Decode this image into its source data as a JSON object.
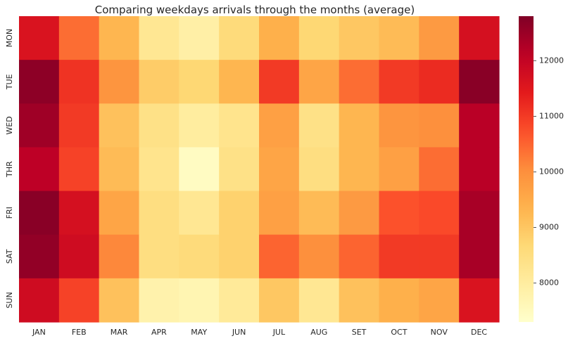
{
  "chart_data": {
    "type": "heatmap",
    "title": "Comparing weekdays arrivals through the months (average)",
    "xlabel": "",
    "ylabel": "",
    "x_categories": [
      "JAN",
      "FEB",
      "MAR",
      "APR",
      "MAY",
      "JUN",
      "JUL",
      "AUG",
      "SET",
      "OCT",
      "NOV",
      "DEC"
    ],
    "y_categories": [
      "MON",
      "TUE",
      "WED",
      "THR",
      "FRI",
      "SAT",
      "SUN"
    ],
    "values": [
      [
        11600,
        10400,
        9300,
        8200,
        7900,
        8600,
        9400,
        8700,
        9000,
        9200,
        9800,
        11700
      ],
      [
        12650,
        11100,
        9900,
        8900,
        8700,
        9300,
        11000,
        9600,
        10400,
        11000,
        11200,
        12700
      ],
      [
        12450,
        11000,
        9100,
        8400,
        8000,
        8300,
        9700,
        8400,
        9300,
        9900,
        10000,
        12150
      ],
      [
        12100,
        10900,
        9200,
        8300,
        7450,
        8400,
        9600,
        8500,
        9300,
        9700,
        10400,
        12150
      ],
      [
        12700,
        11700,
        9600,
        8500,
        8200,
        8800,
        9700,
        9200,
        9800,
        10700,
        10800,
        12350
      ],
      [
        12600,
        11800,
        10100,
        8500,
        8600,
        8800,
        10500,
        10000,
        10500,
        11000,
        11000,
        12350
      ],
      [
        11800,
        10900,
        9100,
        7800,
        7700,
        8100,
        9000,
        8200,
        9100,
        9400,
        9600,
        11600
      ]
    ],
    "colorbar": {
      "colormap": "YlOrRd",
      "range": [
        7300,
        12800
      ],
      "ticks": [
        8000,
        9000,
        10000,
        11000,
        12000
      ],
      "tick_labels": [
        "8000",
        "9000",
        "10000",
        "11000",
        "12000"
      ]
    },
    "grid": false,
    "legend": "colorbar-right"
  }
}
